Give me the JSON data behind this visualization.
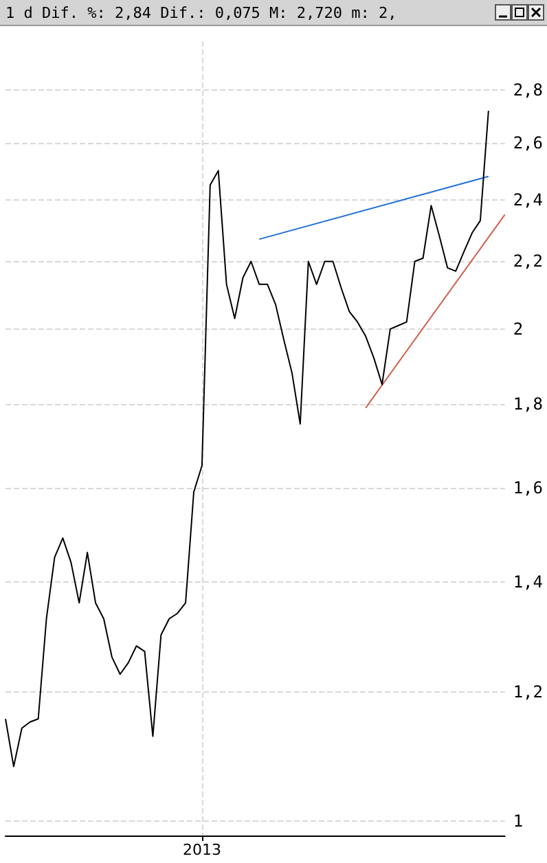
{
  "chart_data": {
    "type": "line",
    "title": "1 d Dif. %: 2,84 Dif.: 0,075 M: 2,720 m: 2,",
    "categories": [
      null,
      null,
      null,
      null,
      null,
      null,
      null,
      null,
      null,
      null,
      null,
      null,
      null,
      null,
      null,
      null,
      null,
      null,
      null,
      null,
      null,
      null,
      null,
      null,
      "2013",
      null,
      null,
      null,
      null,
      null,
      null,
      null,
      null,
      null,
      null,
      null,
      null,
      null,
      null,
      null,
      null,
      null,
      null,
      null,
      null,
      null,
      null,
      null,
      null,
      null,
      null,
      null,
      null,
      null,
      null,
      null,
      null,
      null,
      null,
      null,
      null,
      null
    ],
    "series": [
      {
        "color": "#000000",
        "values": [
          1.155,
          1.08,
          1.14,
          1.15,
          1.155,
          1.33,
          1.45,
          1.49,
          1.44,
          1.36,
          1.46,
          1.36,
          1.33,
          1.26,
          1.23,
          1.25,
          1.28,
          1.27,
          1.127,
          1.3,
          1.33,
          1.34,
          1.36,
          1.59,
          1.65,
          2.45,
          2.5,
          2.13,
          2.03,
          2.15,
          2.2,
          2.13,
          2.13,
          2.07,
          1.97,
          1.88,
          1.75,
          2.2,
          2.13,
          2.2,
          2.2,
          2.12,
          2.05,
          2.02,
          1.98,
          1.92,
          1.85,
          2.0,
          2.01,
          2.02,
          2.2,
          2.21,
          2.38,
          2.28,
          2.18,
          2.17,
          2.23,
          2.29,
          2.33,
          2.72,
          null,
          null
        ]
      },
      {
        "color": "#1f6fd8",
        "values": [
          null,
          null,
          null,
          null,
          null,
          null,
          null,
          null,
          null,
          null,
          null,
          null,
          null,
          null,
          null,
          null,
          null,
          null,
          null,
          null,
          null,
          null,
          null,
          null,
          null,
          null,
          null,
          null,
          null,
          null,
          null,
          2.27,
          null,
          null,
          null,
          null,
          null,
          null,
          null,
          null,
          null,
          null,
          null,
          null,
          null,
          null,
          null,
          null,
          null,
          null,
          null,
          null,
          null,
          null,
          null,
          null,
          null,
          null,
          null,
          2.48,
          null,
          null
        ]
      },
      {
        "color": "#d06050",
        "values": [
          null,
          null,
          null,
          null,
          null,
          null,
          null,
          null,
          null,
          null,
          null,
          null,
          null,
          null,
          null,
          null,
          null,
          null,
          null,
          null,
          null,
          null,
          null,
          null,
          null,
          null,
          null,
          null,
          null,
          null,
          null,
          null,
          null,
          null,
          null,
          null,
          null,
          null,
          null,
          null,
          null,
          null,
          null,
          null,
          1.79,
          null,
          null,
          null,
          null,
          null,
          null,
          null,
          null,
          null,
          null,
          null,
          null,
          null,
          null,
          null,
          null,
          2.35
        ]
      }
    ],
    "ylim": [
      0.98,
      3.0
    ],
    "yticks": [
      {
        "value": 1,
        "label": "1"
      },
      {
        "value": 1.2,
        "label": "1,2"
      },
      {
        "value": 1.4,
        "label": "1,4"
      },
      {
        "value": 1.6,
        "label": "1,6"
      },
      {
        "value": 1.8,
        "label": "1,8"
      },
      {
        "value": 2,
        "label": "2"
      },
      {
        "value": 2.2,
        "label": "2,2"
      },
      {
        "value": 2.4,
        "label": "2,4"
      },
      {
        "value": 2.6,
        "label": "2,6"
      },
      {
        "value": 2.8,
        "label": "2,8"
      }
    ],
    "log": true,
    "grid": true,
    "marker": "none",
    "line_style": "solid"
  }
}
